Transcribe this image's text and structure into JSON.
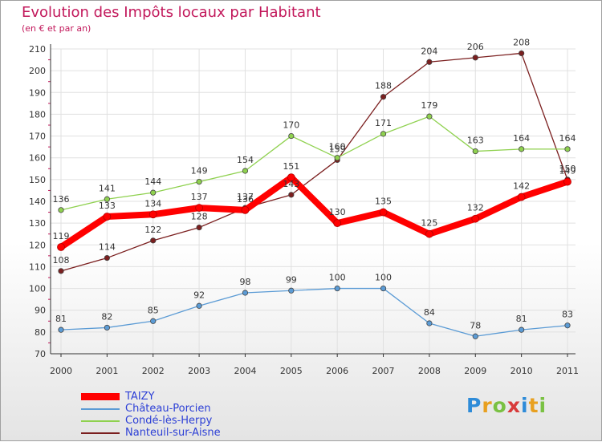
{
  "header": {
    "title": "Evolution des Impôts locaux par Habitant",
    "subtitle": "(en € et par an)"
  },
  "logo": {
    "text": "Proxiti"
  },
  "colors": {
    "taizy": "#ff0000",
    "chateau": "#5b9bd5",
    "conde": "#8fd14f",
    "nanteuil": "#7b1f1f",
    "title": "#c2185b",
    "legend_text": "#2c3fd6",
    "axis": "#333333",
    "grid": "#e0e0e0"
  },
  "chart_data": {
    "type": "line",
    "title": "Evolution des Impôts locaux par Habitant",
    "subtitle": "(en € et par an)",
    "xlabel": "",
    "ylabel": "",
    "x": [
      "2000",
      "2001",
      "2002",
      "2003",
      "2004",
      "2005",
      "2006",
      "2007",
      "2008",
      "2009",
      "2010",
      "2011"
    ],
    "ylim": [
      70,
      210
    ],
    "yticks": [
      70,
      80,
      90,
      100,
      110,
      120,
      130,
      140,
      150,
      160,
      170,
      180,
      190,
      200,
      210
    ],
    "grid": true,
    "legend_position": "bottom-left",
    "series": [
      {
        "key": "taizy",
        "name": "TAIZY",
        "values": [
          119,
          133,
          134,
          137,
          136,
          151,
          130,
          135,
          125,
          132,
          142,
          149
        ]
      },
      {
        "key": "chateau",
        "name": "Château-Porcien",
        "values": [
          81,
          82,
          85,
          92,
          98,
          99,
          100,
          100,
          84,
          78,
          81,
          83
        ]
      },
      {
        "key": "conde",
        "name": "Condé-lès-Herpy",
        "values": [
          136,
          141,
          144,
          149,
          154,
          170,
          160,
          171,
          179,
          163,
          164,
          164
        ]
      },
      {
        "key": "nanteuil",
        "name": "Nanteuil-sur-Aisne",
        "values": [
          108,
          114,
          122,
          128,
          137,
          143,
          159,
          188,
          204,
          206,
          208,
          150
        ]
      }
    ]
  }
}
